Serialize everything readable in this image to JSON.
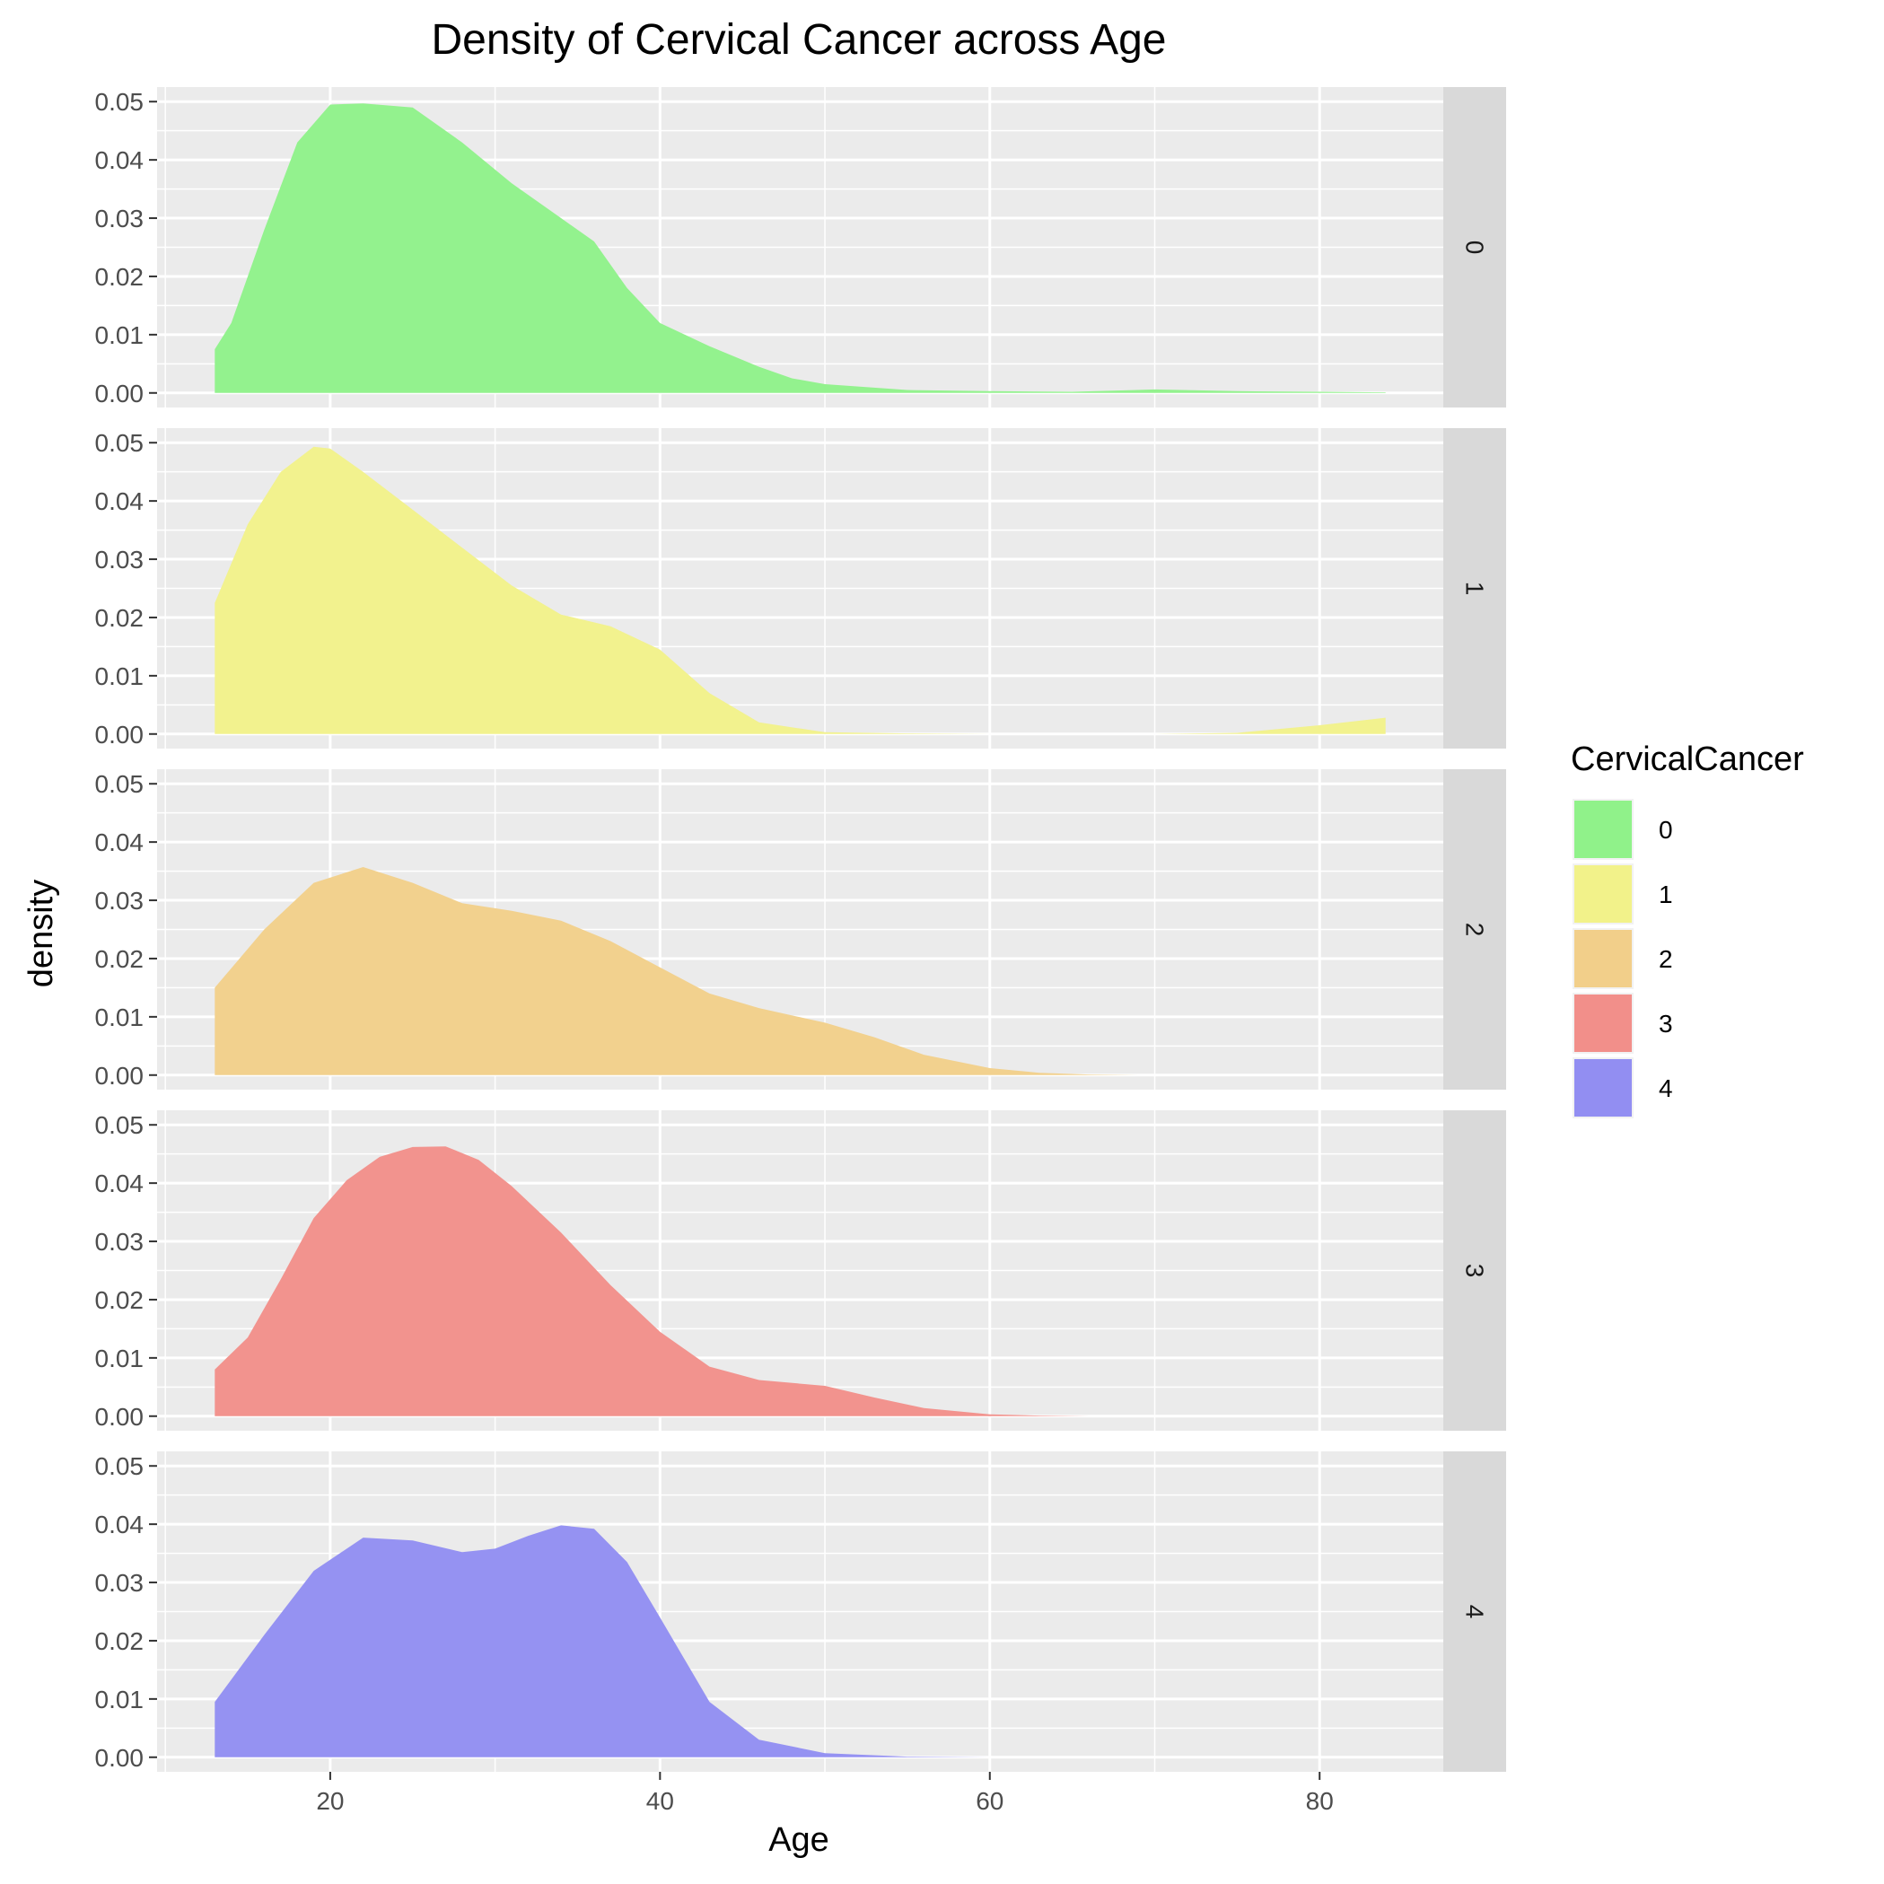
{
  "chart_data": {
    "type": "area",
    "title": "Density of Cervical Cancer across Age",
    "xlabel": "Age",
    "ylabel": "density",
    "xlim": [
      9.5,
      87.5
    ],
    "ylim": [
      -0.0025,
      0.0525
    ],
    "x_ticks": [
      20,
      40,
      60,
      80
    ],
    "x_tick_labels": [
      "20",
      "40",
      "60",
      "80"
    ],
    "y_ticks": [
      0,
      0.01,
      0.02,
      0.03,
      0.04,
      0.05
    ],
    "y_tick_labels": [
      "0.00",
      "0.01",
      "0.02",
      "0.03",
      "0.04",
      "0.05"
    ],
    "grid": true,
    "facet_by": "CervicalCancer",
    "legend": {
      "title": "CervicalCancer",
      "position": "right",
      "entries": [
        "0",
        "1",
        "2",
        "3",
        "4"
      ]
    },
    "series": [
      {
        "name": "0",
        "color": "#90F28A",
        "x": [
          13,
          14,
          16,
          18,
          20,
          22,
          25,
          28,
          31,
          34,
          36,
          38,
          40,
          43,
          46,
          48,
          50,
          55,
          60,
          65,
          70,
          75,
          80,
          84
        ],
        "y": [
          0.0075,
          0.012,
          0.028,
          0.043,
          0.0495,
          0.0497,
          0.049,
          0.043,
          0.036,
          0.03,
          0.026,
          0.018,
          0.012,
          0.008,
          0.0045,
          0.0025,
          0.0015,
          0.0005,
          0.0003,
          0.0002,
          0.0006,
          0.0003,
          0.0002,
          0.0001
        ]
      },
      {
        "name": "1",
        "color": "#F2F28A",
        "x": [
          13,
          15,
          17,
          19,
          20,
          22,
          25,
          28,
          31,
          34,
          37,
          40,
          43,
          46,
          50,
          55,
          60,
          65,
          70,
          75,
          80,
          84
        ],
        "y": [
          0.0225,
          0.036,
          0.045,
          0.0493,
          0.049,
          0.045,
          0.0385,
          0.032,
          0.0255,
          0.0205,
          0.0185,
          0.0145,
          0.007,
          0.002,
          0.0003,
          0.0001,
          0.0,
          0.0,
          0.0,
          0.0002,
          0.0015,
          0.0028
        ]
      },
      {
        "name": "2",
        "color": "#F2CF8A",
        "x": [
          13,
          16,
          19,
          22,
          25,
          28,
          31,
          34,
          37,
          40,
          43,
          46,
          50,
          53,
          56,
          60,
          63,
          66,
          69
        ],
        "y": [
          0.015,
          0.025,
          0.033,
          0.0357,
          0.033,
          0.0295,
          0.0282,
          0.0265,
          0.023,
          0.0185,
          0.014,
          0.0115,
          0.009,
          0.0065,
          0.0035,
          0.0012,
          0.0004,
          0.0001,
          0.0
        ]
      },
      {
        "name": "3",
        "color": "#F28F8A",
        "x": [
          13,
          15,
          17,
          19,
          21,
          23,
          25,
          27,
          29,
          31,
          34,
          37,
          40,
          43,
          46,
          50,
          53,
          56,
          60,
          63,
          66
        ],
        "y": [
          0.008,
          0.0135,
          0.0235,
          0.034,
          0.0405,
          0.0445,
          0.0462,
          0.0463,
          0.044,
          0.0395,
          0.0315,
          0.0225,
          0.0145,
          0.0085,
          0.0062,
          0.0052,
          0.0032,
          0.0014,
          0.0003,
          0.0001,
          0.0
        ]
      },
      {
        "name": "4",
        "color": "#928EF2",
        "x": [
          13,
          16,
          19,
          22,
          25,
          28,
          30,
          32,
          34,
          36,
          38,
          40,
          43,
          46,
          50,
          55,
          60
        ],
        "y": [
          0.0095,
          0.021,
          0.032,
          0.0377,
          0.0372,
          0.0352,
          0.0358,
          0.038,
          0.0398,
          0.0392,
          0.0335,
          0.024,
          0.0095,
          0.003,
          0.0007,
          0.0001,
          0.0
        ]
      }
    ]
  }
}
